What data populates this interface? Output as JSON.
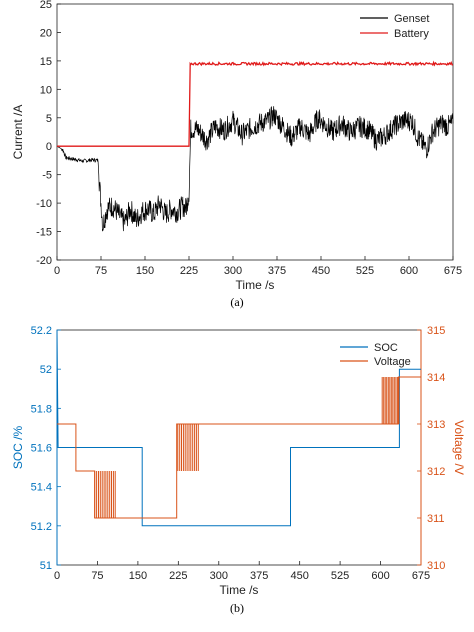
{
  "chart_data": [
    {
      "type": "line",
      "caption": "(a)",
      "xlabel": "Time /s",
      "ylabel": "Current /A",
      "xlim": [
        0,
        675
      ],
      "ylim": [
        -20,
        25
      ],
      "xticks": [
        0,
        75,
        150,
        225,
        300,
        375,
        450,
        525,
        600,
        675
      ],
      "yticks": [
        -20,
        -15,
        -10,
        -5,
        0,
        5,
        10,
        15,
        20,
        25
      ],
      "grid": false,
      "legend_position": "top-right",
      "series": [
        {
          "name": "Genset",
          "color": "#000000",
          "points": [
            [
              0,
              0
            ],
            [
              10,
              -0.6
            ],
            [
              15,
              -2
            ],
            [
              30,
              -2.3
            ],
            [
              45,
              -2.6
            ],
            [
              60,
              -2.4
            ],
            [
              70,
              -2.5
            ],
            [
              72,
              -6
            ],
            [
              78,
              -14
            ],
            [
              85,
              -11
            ],
            [
              95,
              -10.5
            ],
            [
              105,
              -12
            ],
            [
              115,
              -13.5
            ],
            [
              125,
              -11
            ],
            [
              135,
              -13
            ],
            [
              145,
              -11.5
            ],
            [
              155,
              -11
            ],
            [
              165,
              -12
            ],
            [
              175,
              -10
            ],
            [
              185,
              -12
            ],
            [
              195,
              -11
            ],
            [
              205,
              -11.5
            ],
            [
              215,
              -10.5
            ],
            [
              220,
              -11
            ],
            [
              225,
              -8
            ],
            [
              228,
              3
            ],
            [
              240,
              3
            ],
            [
              255,
              1
            ],
            [
              270,
              3.5
            ],
            [
              285,
              2.8
            ],
            [
              300,
              4.5
            ],
            [
              315,
              2
            ],
            [
              330,
              3.2
            ],
            [
              345,
              4
            ],
            [
              360,
              4.5
            ],
            [
              370,
              5.5
            ],
            [
              385,
              3.5
            ],
            [
              400,
              1.5
            ],
            [
              415,
              3.5
            ],
            [
              430,
              2
            ],
            [
              445,
              5
            ],
            [
              460,
              3.5
            ],
            [
              470,
              2.5
            ],
            [
              485,
              4
            ],
            [
              500,
              2.5
            ],
            [
              515,
              3.5
            ],
            [
              530,
              3
            ],
            [
              545,
              1
            ],
            [
              560,
              2
            ],
            [
              575,
              3.5
            ],
            [
              590,
              4.5
            ],
            [
              605,
              4.5
            ],
            [
              615,
              1.5
            ],
            [
              630,
              -0.5
            ],
            [
              640,
              2.5
            ],
            [
              655,
              4
            ],
            [
              665,
              3.5
            ],
            [
              675,
              4
            ]
          ]
        },
        {
          "name": "Battery",
          "color": "#e01a1a",
          "points": [
            [
              0,
              0
            ],
            [
              225,
              0
            ],
            [
              227,
              14.5
            ],
            [
              675,
              14.5
            ]
          ]
        }
      ]
    },
    {
      "type": "line",
      "caption": "(b)",
      "xlabel": "Time /s",
      "ylabel": "SOC /%",
      "ylabel_right": "Voltage /V",
      "xlim": [
        0,
        675
      ],
      "ylim": [
        51,
        52.2
      ],
      "ylim_right": [
        310,
        315
      ],
      "xticks": [
        0,
        75,
        150,
        225,
        300,
        375,
        450,
        525,
        600,
        675
      ],
      "yticks": [
        51,
        51.2,
        51.4,
        51.6,
        51.8,
        52,
        52.2
      ],
      "yticks_right": [
        310,
        311,
        312,
        313,
        314,
        315
      ],
      "grid": false,
      "legend_position": "top-right",
      "series": [
        {
          "name": "SOC",
          "color": "#0072bd",
          "axis": "left",
          "step_points": [
            [
              0,
              52.2
            ],
            [
              2,
              51.6
            ],
            [
              158,
              51.6
            ],
            [
              158,
              51.2
            ],
            [
              433,
              51.2
            ],
            [
              433,
              51.6
            ],
            [
              635,
              51.6
            ],
            [
              635,
              52
            ],
            [
              675,
              52
            ]
          ]
        },
        {
          "name": "Voltage",
          "color": "#d95319",
          "axis": "right",
          "step_points": [
            [
              0,
              313
            ],
            [
              35,
              313
            ],
            [
              35,
              312
            ],
            [
              70,
              312
            ],
            [
              70,
              311
            ],
            [
              222,
              311
            ],
            [
              222,
              313
            ],
            [
              597,
              313
            ],
            [
              597,
              313
            ],
            [
              633,
              313
            ],
            [
              633,
              314
            ],
            [
              675,
              314
            ]
          ],
          "bursts": [
            {
              "t0": 70,
              "t1": 108,
              "low": 311,
              "high": 312
            },
            {
              "t0": 224,
              "t1": 262,
              "low": 312,
              "high": 313
            },
            {
              "t0": 603,
              "t1": 634,
              "low": 313,
              "high": 314
            }
          ]
        }
      ]
    }
  ]
}
